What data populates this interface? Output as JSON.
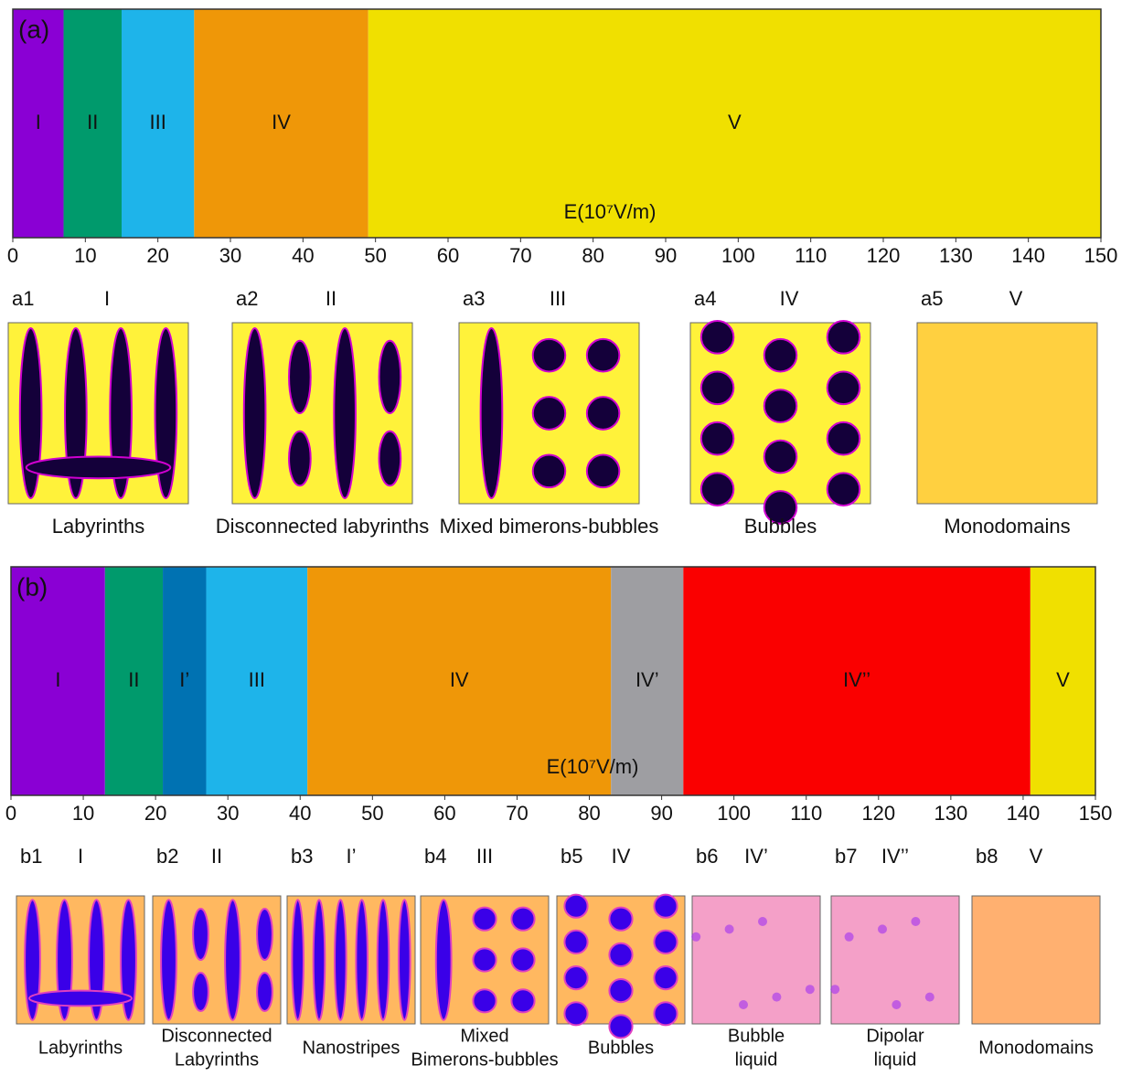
{
  "chart_data": [
    {
      "type": "phase",
      "panel_label": "(a)",
      "axis_label": "E(10⁷V/m)",
      "xlim": [
        0,
        150
      ],
      "xticks": [
        0,
        10,
        20,
        30,
        40,
        50,
        60,
        70,
        80,
        90,
        100,
        110,
        120,
        130,
        140,
        150
      ],
      "regions": [
        {
          "label": "I",
          "color": "#8a00d4",
          "start": 0,
          "end": 7
        },
        {
          "label": "II",
          "color": "#009a6c",
          "start": 7,
          "end": 15
        },
        {
          "label": "III",
          "color": "#1eb4ea",
          "start": 15,
          "end": 25
        },
        {
          "label": "IV",
          "color": "#ef9708",
          "start": 25,
          "end": 49
        },
        {
          "label": "V",
          "color": "#f0e000",
          "start": 49,
          "end": 150
        }
      ],
      "snapshots": [
        {
          "id": "a1",
          "phase": "I",
          "caption": [
            "Labyrinths"
          ]
        },
        {
          "id": "a2",
          "phase": "II",
          "caption": [
            "Disconnected labyrinths"
          ]
        },
        {
          "id": "a3",
          "phase": "III",
          "caption": [
            "Mixed bimerons-bubbles"
          ]
        },
        {
          "id": "a4",
          "phase": "IV",
          "caption": [
            "Bubbles"
          ]
        },
        {
          "id": "a5",
          "phase": "V",
          "caption": [
            "Monodomains"
          ]
        }
      ]
    },
    {
      "type": "phase",
      "panel_label": "(b)",
      "axis_label": "E(10⁷V/m)",
      "xlim": [
        0,
        150
      ],
      "xticks": [
        0,
        10,
        20,
        30,
        40,
        50,
        60,
        70,
        80,
        90,
        100,
        110,
        120,
        130,
        140,
        150
      ],
      "regions": [
        {
          "label": "I",
          "color": "#8a00d4",
          "start": 0,
          "end": 13
        },
        {
          "label": "II",
          "color": "#009a6c",
          "start": 13,
          "end": 21
        },
        {
          "label": "I’",
          "color": "#0072b2",
          "start": 21,
          "end": 27
        },
        {
          "label": "III",
          "color": "#1eb4ea",
          "start": 27,
          "end": 41
        },
        {
          "label": "IV",
          "color": "#ef9708",
          "start": 41,
          "end": 83
        },
        {
          "label": "IV’",
          "color": "#9e9ea2",
          "start": 83,
          "end": 93
        },
        {
          "label": "IV’’",
          "color": "#fa0000",
          "start": 93,
          "end": 141
        },
        {
          "label": "V",
          "color": "#f0e000",
          "start": 141,
          "end": 150
        }
      ],
      "snapshots": [
        {
          "id": "b1",
          "phase": "I",
          "caption": [
            "Labyrinths"
          ]
        },
        {
          "id": "b2",
          "phase": "II",
          "caption": [
            "Disconnected",
            "Labyrinths"
          ]
        },
        {
          "id": "b3",
          "phase": "I’",
          "caption": [
            "Nanostripes"
          ]
        },
        {
          "id": "b4",
          "phase": "III",
          "caption": [
            "Mixed",
            "Bimerons-bubbles"
          ]
        },
        {
          "id": "b5",
          "phase": "IV",
          "caption": [
            "Bubbles"
          ]
        },
        {
          "id": "b6",
          "phase": "IV’",
          "caption": [
            "Bubble",
            "liquid"
          ]
        },
        {
          "id": "b7",
          "phase": "IV’’",
          "caption": [
            "Dipolar",
            "liquid"
          ]
        },
        {
          "id": "b8",
          "phase": "V",
          "caption": [
            "Monodomains"
          ]
        }
      ]
    }
  ]
}
